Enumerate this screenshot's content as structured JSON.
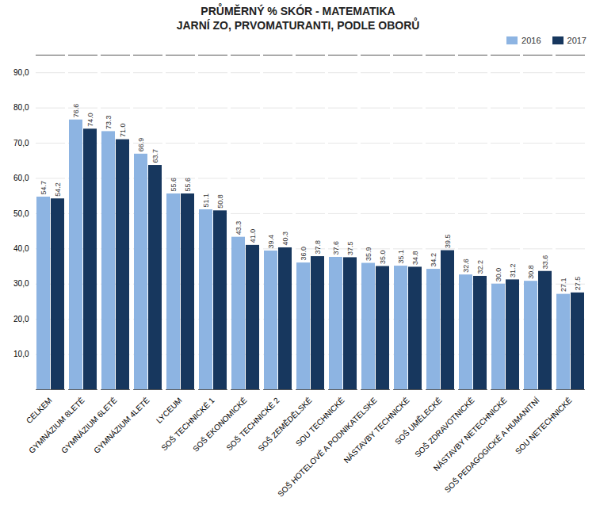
{
  "chart_data": {
    "type": "bar",
    "title": "PRŮMĚRNÝ % SKÓR - MATEMATIKA\nJARNÍ ZO, PRVOMATURANTI, PODLE OBORŮ",
    "categories": [
      "CELKEM",
      "GYMNÁZIUM 8LETÉ",
      "GYMNÁZIUM 6LETÉ",
      "GYMNÁZIUM 4LETÉ",
      "LYCEUM",
      "SOŠ TECHNICKÉ 1",
      "SOŠ EKONOMICKÉ",
      "SOŠ TECHNICKÉ 2",
      "SOŠ ZEMĚDĚLSKÉ",
      "SOU TECHNICKÉ",
      "SOŠ HOTELOVÉ A PODNIKATELSKE",
      "NÁSTAVBY TECHNICKÉ",
      "SOŠ UMĚLECKÉ",
      "SOŠ ZDRAVOTNICKÉ",
      "NÁSTAVBY NETECHNICKÉ",
      "SOŠ PEDAGOGICKÉ A HUMANITNÍ",
      "SOU NETECHNICKÉ"
    ],
    "series": [
      {
        "name": "2016",
        "color": "#8db4e2",
        "values": [
          54.7,
          76.6,
          73.3,
          66.9,
          55.6,
          51.1,
          43.3,
          39.4,
          36.0,
          37.6,
          35.9,
          35.1,
          34.2,
          32.6,
          30.0,
          30.8,
          27.1
        ],
        "value_labels": [
          "54.7",
          "76.6",
          "73.3",
          "66.9",
          "55.6",
          "51.1",
          "43.3",
          "39.4",
          "36.0",
          "37.6",
          "35.9",
          "35.1",
          "34.2",
          "32.6",
          "30.0",
          "30.8",
          "27.1"
        ]
      },
      {
        "name": "2017",
        "color": "#17375e",
        "values": [
          54.2,
          74.0,
          71.0,
          63.7,
          55.6,
          50.8,
          41.0,
          40.3,
          37.8,
          37.5,
          35.0,
          34.8,
          39.5,
          32.2,
          31.2,
          33.6,
          27.5
        ],
        "value_labels": [
          "54.2",
          "74.0",
          "71.0",
          "63.7",
          "55.6",
          "50.8",
          "41.0",
          "40.3",
          "37.8",
          "37.5",
          "35.0",
          "34.8",
          "39.5",
          "32.2",
          "31.2",
          "33.6",
          "27.5"
        ]
      }
    ],
    "ylim": [
      0,
      95
    ],
    "yticks": [
      {
        "value": 10,
        "label": "10,0"
      },
      {
        "value": 20,
        "label": "20,0"
      },
      {
        "value": 30,
        "label": "30,0"
      },
      {
        "value": 40,
        "label": "40,0"
      },
      {
        "value": 50,
        "label": "50,0"
      },
      {
        "value": 60,
        "label": "60,0"
      },
      {
        "value": 70,
        "label": "70,0"
      },
      {
        "value": 80,
        "label": "80,0"
      },
      {
        "value": 90,
        "label": "90,0"
      }
    ],
    "grid": true,
    "legend": "upper right",
    "data_labels": true
  }
}
